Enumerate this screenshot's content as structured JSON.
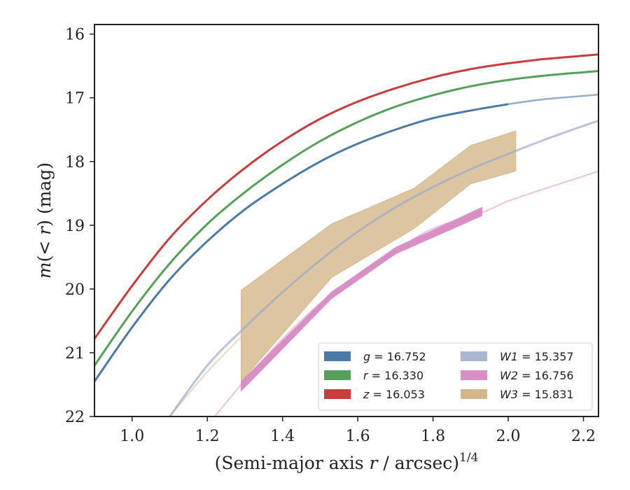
{
  "chart_data": {
    "type": "line",
    "xlabel": "(Semi-major axis r / arcsec)^{1/4}",
    "ylabel": "m(< r) (mag)",
    "xlim": [
      0.9,
      2.24
    ],
    "ylim": [
      22.0,
      15.85
    ],
    "y_inverted": true,
    "xticks": [
      "1.0",
      "1.2",
      "1.4",
      "1.6",
      "1.8",
      "2.0",
      "2.2"
    ],
    "yticks": [
      "16",
      "17",
      "18",
      "19",
      "20",
      "21",
      "22"
    ],
    "legend_placement": "lower-right",
    "legend_columns": 2,
    "series": [
      {
        "name": "g = 16.752",
        "legend_var": "g",
        "legend_value": "= 16.752",
        "color": "#4c7aa6",
        "style": "line",
        "x": [
          0.9,
          1.0,
          1.1,
          1.2,
          1.3,
          1.4,
          1.5,
          1.6,
          1.7,
          1.8,
          1.9,
          2.0,
          2.1,
          2.2,
          2.24
        ],
        "y": [
          21.45,
          20.6,
          19.85,
          19.25,
          18.75,
          18.35,
          18.0,
          17.72,
          17.5,
          17.32,
          17.2,
          17.1,
          17.02,
          16.97,
          16.95
        ],
        "solid_until": 2.0
      },
      {
        "name": "r = 16.330",
        "legend_var": "r",
        "legend_value": "= 16.330",
        "color": "#55a05a",
        "style": "line",
        "x": [
          0.9,
          1.0,
          1.1,
          1.2,
          1.3,
          1.4,
          1.5,
          1.6,
          1.7,
          1.8,
          1.9,
          2.0,
          2.1,
          2.2,
          2.24
        ],
        "y": [
          21.2,
          20.35,
          19.6,
          18.98,
          18.48,
          18.05,
          17.68,
          17.38,
          17.14,
          16.96,
          16.82,
          16.72,
          16.65,
          16.6,
          16.58
        ]
      },
      {
        "name": "z = 16.053",
        "legend_var": "z",
        "legend_value": "= 16.053",
        "color": "#c93c3c",
        "style": "line",
        "x": [
          0.9,
          1.0,
          1.1,
          1.2,
          1.3,
          1.4,
          1.5,
          1.6,
          1.7,
          1.8,
          1.9,
          2.0,
          2.1,
          2.2,
          2.24
        ],
        "y": [
          20.78,
          19.95,
          19.2,
          18.6,
          18.1,
          17.68,
          17.33,
          17.06,
          16.85,
          16.68,
          16.55,
          16.46,
          16.39,
          16.34,
          16.32
        ]
      },
      {
        "name": "W1 = 15.357",
        "legend_var": "W1",
        "legend_value": "= 15.357",
        "color": "#9aaac9",
        "style": "line",
        "x": [
          1.1,
          1.2,
          1.3,
          1.4,
          1.5,
          1.6,
          1.7,
          1.8,
          1.9,
          2.0,
          2.1,
          2.2,
          2.24
        ],
        "y": [
          22.0,
          21.2,
          20.6,
          20.05,
          19.55,
          19.1,
          18.72,
          18.4,
          18.12,
          17.88,
          17.65,
          17.44,
          17.36
        ],
        "band_from": 1.29
      },
      {
        "name": "W2 = 16.756",
        "legend_var": "W2",
        "legend_value": "= 16.756",
        "color": "#d98fc6",
        "style": "band",
        "x": [
          1.22,
          1.29,
          1.4,
          1.53,
          1.7,
          1.8,
          1.93,
          2.0,
          2.1,
          2.2,
          2.24
        ],
        "y": [
          22.0,
          21.5,
          20.78,
          20.08,
          19.4,
          19.05,
          18.8,
          18.62,
          18.42,
          18.23,
          18.15
        ],
        "band_x": [
          1.29,
          1.53,
          1.7,
          1.93
        ],
        "band_lower": [
          21.6,
          20.15,
          19.45,
          18.85
        ],
        "band_upper": [
          21.45,
          20.05,
          19.35,
          18.72
        ]
      },
      {
        "name": "W3 = 15.831",
        "legend_var": "W3",
        "legend_value": "= 15.831",
        "color": "#d4b68a",
        "style": "band",
        "x": [
          1.1,
          1.2,
          1.29
        ],
        "y": [
          22.0,
          21.3,
          20.75
        ],
        "band_x": [
          1.29,
          1.53,
          1.75,
          1.9,
          2.02
        ],
        "band_lower": [
          21.45,
          19.82,
          19.05,
          18.35,
          18.15
        ],
        "band_upper": [
          20.02,
          18.98,
          18.42,
          17.75,
          17.52
        ]
      }
    ]
  }
}
